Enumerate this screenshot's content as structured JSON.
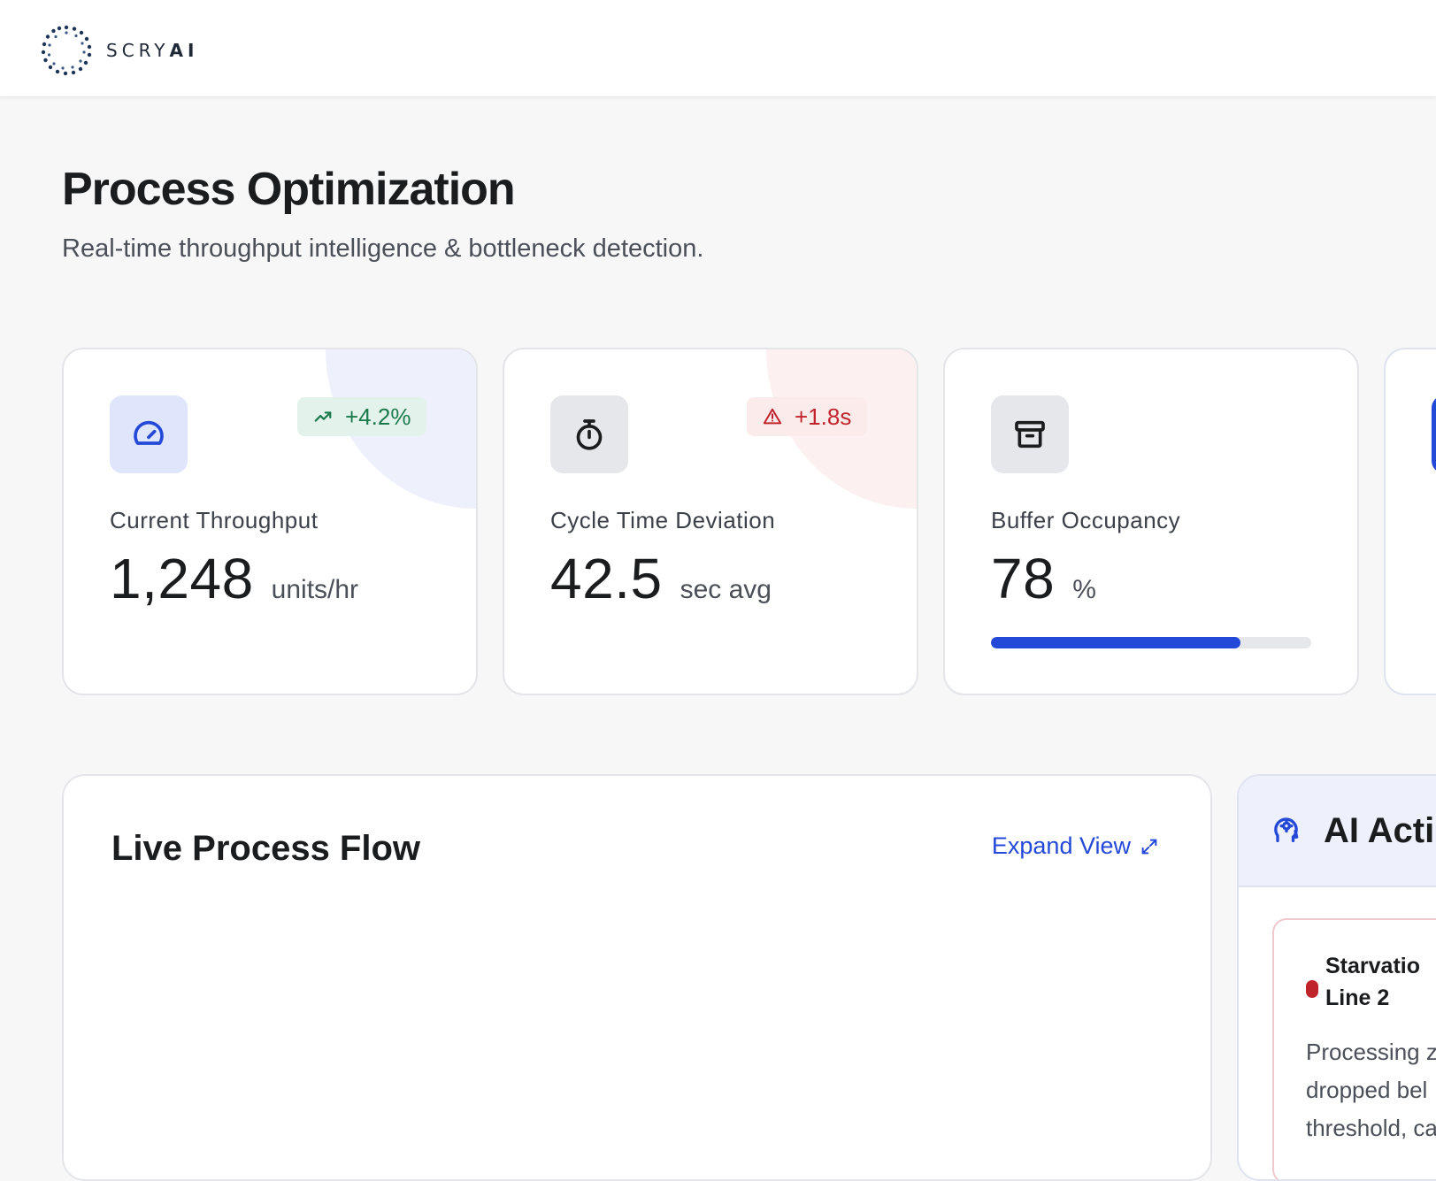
{
  "brand": {
    "logo_text": "SCRY",
    "logo_text_bold": "AI"
  },
  "page": {
    "title": "Process Optimization",
    "subtitle": "Real-time throughput intelligence & bottleneck detection."
  },
  "kpis": [
    {
      "label": "Current Throughput",
      "value": "1,248",
      "unit": "units/hr",
      "icon": "speedometer-icon",
      "badge": {
        "text": "+4.2%",
        "icon": "trending-up-icon",
        "tone": "positive"
      },
      "colors": {
        "icon_bg": "#dfe5fb",
        "icon_fg": "#2449d8",
        "badge_bg": "#e3f3ec",
        "badge_fg": "#1a7a4c",
        "blob": "#eef0fb"
      }
    },
    {
      "label": "Cycle Time Deviation",
      "value": "42.5",
      "unit": "sec avg",
      "icon": "stopwatch-icon",
      "badge": {
        "text": "+1.8s",
        "icon": "warning-icon",
        "tone": "negative"
      },
      "colors": {
        "icon_bg": "#e6e7ea",
        "icon_fg": "#1b1c1e",
        "badge_bg": "#fcebeb",
        "badge_fg": "#c0242b",
        "blob": "#fdf0f0"
      }
    },
    {
      "label": "Buffer Occupancy",
      "value": "78",
      "unit": "%",
      "icon": "archive-icon",
      "progress": 0.78,
      "colors": {
        "icon_bg": "#e6e7ea",
        "icon_fg": "#1b1c1e",
        "bar": "#2449d8"
      }
    }
  ],
  "flow_panel": {
    "title": "Live Process Flow",
    "expand_label": "Expand View"
  },
  "ai_panel": {
    "title": "AI Acti",
    "alert": {
      "title": "Starvatio\nLine 2",
      "body": "Processing z\ndropped bel\nthreshold, ca",
      "severity_color": "#c0242b"
    }
  },
  "colors": {
    "accent": "#2449d8",
    "background": "#f7f7f8"
  }
}
